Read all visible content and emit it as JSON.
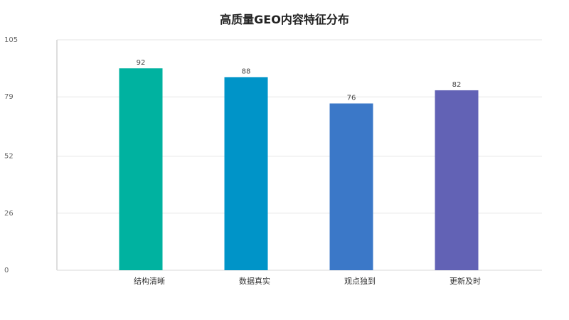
{
  "chart_data": {
    "type": "bar",
    "title": "高质量GEO内容特征分布",
    "xlabel": "",
    "ylabel": "",
    "categories": [
      "结构清晰",
      "数据真实",
      "观点独到",
      "更新及时"
    ],
    "values": [
      92,
      88,
      76,
      82
    ],
    "data_labels": [
      "92",
      "88",
      "76",
      "82"
    ],
    "colors": [
      "#00b2a0",
      "#0094c8",
      "#3b78c8",
      "#6262b5"
    ],
    "ylim": [
      0,
      105
    ],
    "y_ticks": [
      0,
      26,
      52,
      79,
      105
    ],
    "grid": true,
    "legend": "none"
  }
}
